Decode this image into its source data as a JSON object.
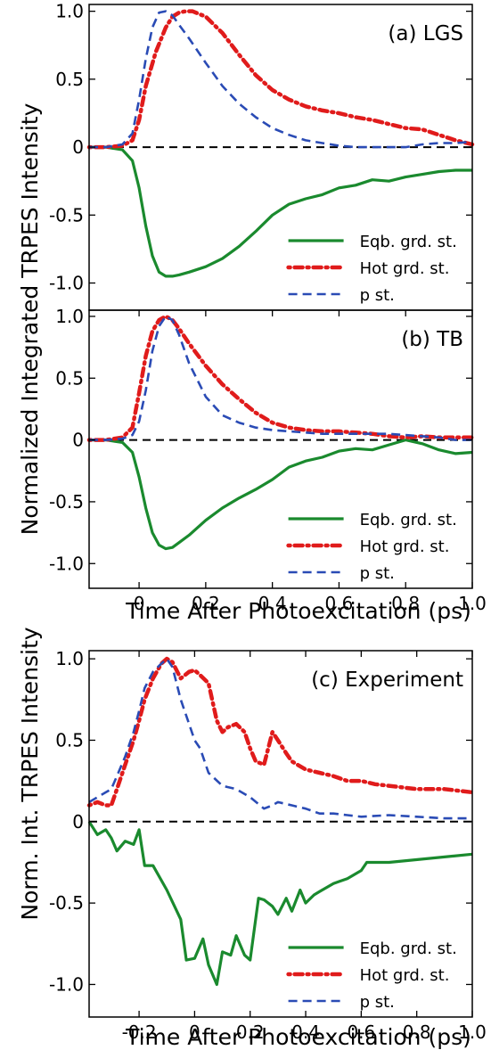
{
  "figure": {
    "top_ylabel": "Normalized Integrated TRPES Intensity",
    "bottom_ylabel": "Norm. Int. TRPES Intensity",
    "xlabel": "Time After Photoexcitation (ps)"
  },
  "colors": {
    "eqb": "#1a8a2e",
    "hot": "#e01b1b",
    "p": "#2a4bb5",
    "zero_line": "#000000"
  },
  "chart_data": [
    {
      "type": "line",
      "title": "(a) LGS",
      "xlim": [
        -0.15,
        1.0
      ],
      "ylim": [
        -1.2,
        1.05
      ],
      "yticks": [
        -1.0,
        -0.5,
        0,
        0.5,
        1.0
      ],
      "ytick_labels": [
        "-1.0",
        "-0.5",
        "0",
        "0.5",
        "1.0"
      ],
      "xticks": [],
      "xtick_labels": [],
      "legend_position": "bottom-right",
      "series": [
        {
          "name": "Eqb. grd. st.",
          "style": "solid",
          "x": [
            -0.15,
            -0.1,
            -0.05,
            -0.02,
            0,
            0.02,
            0.04,
            0.06,
            0.08,
            0.1,
            0.12,
            0.15,
            0.2,
            0.25,
            0.3,
            0.35,
            0.4,
            0.45,
            0.5,
            0.55,
            0.6,
            0.65,
            0.7,
            0.75,
            0.8,
            0.85,
            0.9,
            0.95,
            1.0
          ],
          "y": [
            0,
            0,
            -0.02,
            -0.1,
            -0.3,
            -0.58,
            -0.8,
            -0.92,
            -0.95,
            -0.95,
            -0.94,
            -0.92,
            -0.88,
            -0.82,
            -0.73,
            -0.62,
            -0.5,
            -0.42,
            -0.38,
            -0.35,
            -0.3,
            -0.28,
            -0.24,
            -0.25,
            -0.22,
            -0.2,
            -0.18,
            -0.17,
            -0.17
          ]
        },
        {
          "name": "Hot grd. st.",
          "style": "dashdot",
          "x": [
            -0.15,
            -0.1,
            -0.05,
            -0.02,
            0,
            0.02,
            0.05,
            0.08,
            0.1,
            0.12,
            0.14,
            0.16,
            0.2,
            0.25,
            0.3,
            0.35,
            0.4,
            0.45,
            0.5,
            0.55,
            0.6,
            0.65,
            0.7,
            0.75,
            0.8,
            0.85,
            0.9,
            0.95,
            1.0
          ],
          "y": [
            0,
            0,
            0.01,
            0.05,
            0.2,
            0.45,
            0.7,
            0.88,
            0.96,
            0.99,
            1.0,
            1.0,
            0.96,
            0.84,
            0.68,
            0.53,
            0.42,
            0.35,
            0.3,
            0.27,
            0.25,
            0.22,
            0.2,
            0.17,
            0.14,
            0.13,
            0.09,
            0.05,
            0.02
          ]
        },
        {
          "name": "p st.",
          "style": "dashed",
          "x": [
            -0.15,
            -0.1,
            -0.05,
            -0.02,
            0,
            0.02,
            0.04,
            0.06,
            0.08,
            0.1,
            0.12,
            0.15,
            0.2,
            0.25,
            0.3,
            0.35,
            0.4,
            0.45,
            0.5,
            0.55,
            0.6,
            0.65,
            0.7,
            0.75,
            0.8,
            0.85,
            0.9,
            0.95,
            1.0
          ],
          "y": [
            0,
            0,
            0.02,
            0.1,
            0.35,
            0.65,
            0.88,
            0.99,
            1.0,
            0.97,
            0.9,
            0.8,
            0.62,
            0.45,
            0.32,
            0.22,
            0.14,
            0.09,
            0.05,
            0.03,
            0.01,
            0.0,
            0.0,
            0.0,
            0.0,
            0.02,
            0.03,
            0.03,
            0.04
          ]
        }
      ]
    },
    {
      "type": "line",
      "title": "(b) TB",
      "xlim": [
        -0.15,
        1.0
      ],
      "ylim": [
        -1.2,
        1.05
      ],
      "yticks": [
        -1.0,
        -0.5,
        0,
        0.5,
        1.0
      ],
      "ytick_labels": [
        "-1.0",
        "-0.5",
        "0",
        "0.5",
        "1.0"
      ],
      "xticks": [
        0,
        0.2,
        0.4,
        0.6,
        0.8,
        1.0
      ],
      "xtick_labels": [
        "0",
        "0.2",
        "0.4",
        "0.6",
        "0.8",
        "1.0"
      ],
      "legend_position": "bottom-right",
      "series": [
        {
          "name": "Eqb. grd. st.",
          "style": "solid",
          "x": [
            -0.15,
            -0.1,
            -0.05,
            -0.02,
            0,
            0.02,
            0.04,
            0.06,
            0.08,
            0.1,
            0.12,
            0.15,
            0.2,
            0.25,
            0.3,
            0.35,
            0.4,
            0.45,
            0.5,
            0.55,
            0.6,
            0.65,
            0.7,
            0.75,
            0.8,
            0.85,
            0.9,
            0.95,
            1.0
          ],
          "y": [
            0,
            0,
            -0.02,
            -0.1,
            -0.3,
            -0.55,
            -0.75,
            -0.85,
            -0.88,
            -0.87,
            -0.83,
            -0.77,
            -0.65,
            -0.55,
            -0.47,
            -0.4,
            -0.32,
            -0.22,
            -0.17,
            -0.14,
            -0.09,
            -0.07,
            -0.08,
            -0.04,
            0.0,
            -0.03,
            -0.08,
            -0.11,
            -0.1
          ]
        },
        {
          "name": "Hot grd. st.",
          "style": "dashdot",
          "x": [
            -0.15,
            -0.1,
            -0.05,
            -0.02,
            0,
            0.02,
            0.04,
            0.06,
            0.08,
            0.1,
            0.12,
            0.15,
            0.2,
            0.25,
            0.3,
            0.35,
            0.4,
            0.45,
            0.5,
            0.55,
            0.6,
            0.65,
            0.7,
            0.75,
            0.8,
            0.85,
            0.9,
            0.95,
            1.0
          ],
          "y": [
            0,
            0,
            0.02,
            0.1,
            0.38,
            0.68,
            0.88,
            0.97,
            1.0,
            0.97,
            0.9,
            0.78,
            0.6,
            0.45,
            0.33,
            0.22,
            0.14,
            0.1,
            0.08,
            0.07,
            0.07,
            0.06,
            0.05,
            0.03,
            0.02,
            0.03,
            0.02,
            0.02,
            0.02
          ]
        },
        {
          "name": "p st.",
          "style": "dashed",
          "x": [
            -0.15,
            -0.1,
            -0.05,
            -0.02,
            0,
            0.02,
            0.04,
            0.06,
            0.08,
            0.1,
            0.12,
            0.15,
            0.2,
            0.25,
            0.3,
            0.35,
            0.4,
            0.45,
            0.5,
            0.55,
            0.6,
            0.65,
            0.7,
            0.75,
            0.8,
            0.85,
            0.9,
            0.95,
            1.0
          ],
          "y": [
            0,
            0,
            0.01,
            0.04,
            0.15,
            0.4,
            0.72,
            0.92,
            1.0,
            0.97,
            0.85,
            0.62,
            0.35,
            0.2,
            0.14,
            0.1,
            0.08,
            0.07,
            0.06,
            0.05,
            0.05,
            0.05,
            0.05,
            0.05,
            0.04,
            0.03,
            0.02,
            0.0,
            0.0
          ]
        }
      ]
    },
    {
      "type": "line",
      "title": "(c) Experiment",
      "xlim": [
        -0.38,
        1.0
      ],
      "ylim": [
        -1.2,
        1.05
      ],
      "yticks": [
        -1.0,
        -0.5,
        0,
        0.5,
        1.0
      ],
      "ytick_labels": [
        "-1.0",
        "-0.5",
        "0",
        "0.5",
        "1.0"
      ],
      "xticks": [
        -0.2,
        0,
        0.2,
        0.4,
        0.6,
        0.8,
        1.0
      ],
      "xtick_labels": [
        "-0.2",
        "0",
        "0.2",
        "0.4",
        "0.6",
        "0.8",
        "1.0"
      ],
      "legend_position": "bottom-right",
      "series": [
        {
          "name": "Eqb. grd. st.",
          "style": "solid",
          "x": [
            -0.38,
            -0.35,
            -0.32,
            -0.3,
            -0.28,
            -0.25,
            -0.22,
            -0.2,
            -0.18,
            -0.15,
            -0.1,
            -0.05,
            -0.03,
            0,
            0.03,
            0.05,
            0.08,
            0.1,
            0.13,
            0.15,
            0.18,
            0.2,
            0.23,
            0.25,
            0.28,
            0.3,
            0.33,
            0.35,
            0.38,
            0.4,
            0.43,
            0.45,
            0.5,
            0.55,
            0.6,
            0.62,
            0.65,
            0.7,
            1.0
          ],
          "y": [
            0,
            -0.08,
            -0.05,
            -0.1,
            -0.18,
            -0.12,
            -0.14,
            -0.05,
            -0.27,
            -0.27,
            -0.42,
            -0.6,
            -0.85,
            -0.84,
            -0.72,
            -0.88,
            -1.0,
            -0.8,
            -0.82,
            -0.7,
            -0.82,
            -0.85,
            -0.47,
            -0.48,
            -0.52,
            -0.57,
            -0.47,
            -0.55,
            -0.42,
            -0.5,
            -0.45,
            -0.43,
            -0.38,
            -0.35,
            -0.3,
            -0.25,
            -0.25,
            -0.25,
            -0.2
          ]
        },
        {
          "name": "Hot grd. st.",
          "style": "dashdot",
          "x": [
            -0.38,
            -0.35,
            -0.32,
            -0.3,
            -0.28,
            -0.25,
            -0.22,
            -0.2,
            -0.18,
            -0.15,
            -0.12,
            -0.1,
            -0.08,
            -0.05,
            -0.02,
            0,
            0.02,
            0.05,
            0.08,
            0.1,
            0.12,
            0.15,
            0.18,
            0.2,
            0.22,
            0.25,
            0.28,
            0.3,
            0.33,
            0.35,
            0.4,
            0.45,
            0.5,
            0.55,
            0.6,
            0.65,
            0.7,
            0.8,
            0.9,
            1.0
          ],
          "y": [
            0.1,
            0.12,
            0.1,
            0.1,
            0.2,
            0.35,
            0.5,
            0.62,
            0.75,
            0.88,
            0.97,
            1.0,
            0.98,
            0.88,
            0.92,
            0.93,
            0.9,
            0.85,
            0.62,
            0.55,
            0.58,
            0.6,
            0.55,
            0.45,
            0.37,
            0.35,
            0.55,
            0.5,
            0.42,
            0.37,
            0.32,
            0.3,
            0.28,
            0.25,
            0.25,
            0.23,
            0.22,
            0.2,
            0.2,
            0.18
          ]
        },
        {
          "name": "p st.",
          "style": "dashed",
          "x": [
            -0.38,
            -0.35,
            -0.32,
            -0.3,
            -0.28,
            -0.25,
            -0.22,
            -0.2,
            -0.18,
            -0.15,
            -0.12,
            -0.1,
            -0.08,
            -0.05,
            -0.02,
            0,
            0.02,
            0.05,
            0.1,
            0.15,
            0.2,
            0.25,
            0.28,
            0.3,
            0.35,
            0.4,
            0.45,
            0.5,
            0.55,
            0.6,
            0.7,
            0.8,
            0.9,
            1.0
          ],
          "y": [
            0.12,
            0.15,
            0.18,
            0.2,
            0.28,
            0.4,
            0.55,
            0.68,
            0.82,
            0.92,
            0.97,
            1.0,
            0.95,
            0.75,
            0.6,
            0.5,
            0.45,
            0.3,
            0.22,
            0.2,
            0.15,
            0.08,
            0.1,
            0.12,
            0.1,
            0.08,
            0.05,
            0.05,
            0.04,
            0.03,
            0.04,
            0.03,
            0.02,
            0.02
          ]
        }
      ]
    }
  ]
}
